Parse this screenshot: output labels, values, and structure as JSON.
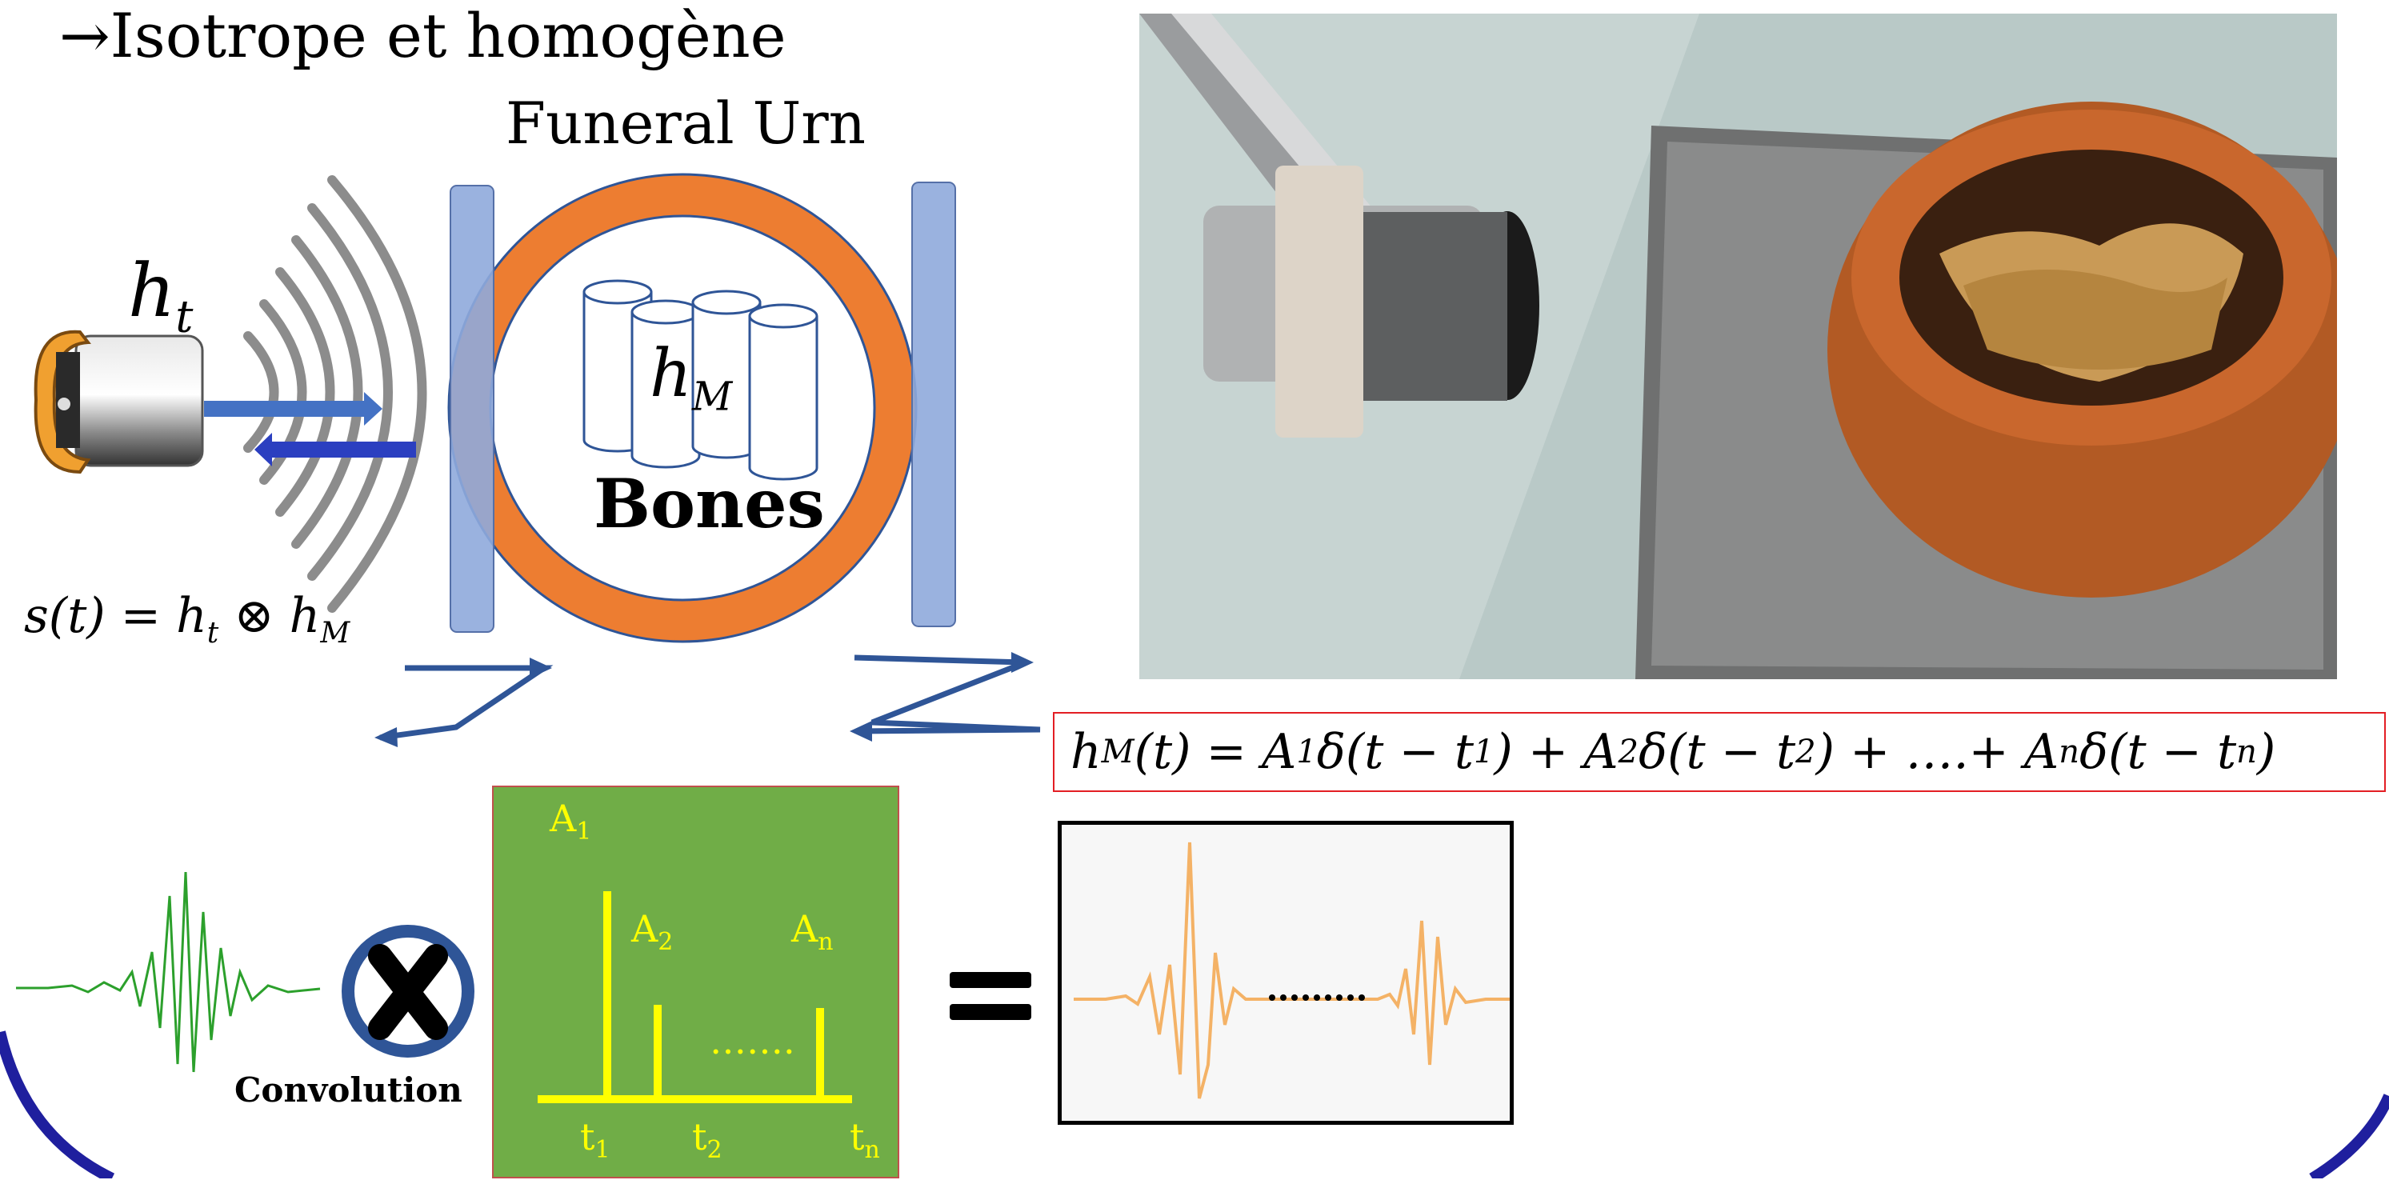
{
  "heading": "→Isotrope et homogène",
  "urn_label": "Funeral Urn",
  "bones_label": "Bones",
  "transducer_response": {
    "symbol": "h",
    "subscript": "t"
  },
  "medium_response": {
    "symbol": "h",
    "subscript": "M"
  },
  "signal_equation": {
    "lhs": "s(t) = h",
    "sub1": "t",
    "op": " ⊗  h",
    "sub2": "M"
  },
  "impulse_response_equation": {
    "parts": [
      "h",
      "M",
      "(t) = A",
      "1",
      "δ(t − t",
      "1",
      ") + A",
      "2",
      "δ(t − t",
      "2",
      ") + ….+ A",
      "n",
      "δ(t − t",
      "n",
      ")"
    ]
  },
  "convolution_label": "Convolution",
  "impulse_panel": {
    "amplitudes": [
      {
        "base": "A",
        "sub": "1"
      },
      {
        "base": "A",
        "sub": "2"
      },
      {
        "base": "A",
        "sub": "n"
      }
    ],
    "times": [
      {
        "base": "t",
        "sub": "1"
      },
      {
        "base": "t",
        "sub": "2"
      },
      {
        "base": "t",
        "sub": "n"
      }
    ],
    "dots": "…….",
    "color": "#ffff00",
    "background": "#70ad47"
  },
  "colors": {
    "urn_ring": "#ed7d31",
    "urn_outline": "#2f5597",
    "plates": "#8faadc",
    "arrows": "#4472c4",
    "wave_green": "#2ca02c",
    "result_wave": "#f4b266",
    "border_arc": "#1f1f9e"
  },
  "icons": [
    "transducer-icon",
    "multiply-circle-icon",
    "equals-icon"
  ]
}
